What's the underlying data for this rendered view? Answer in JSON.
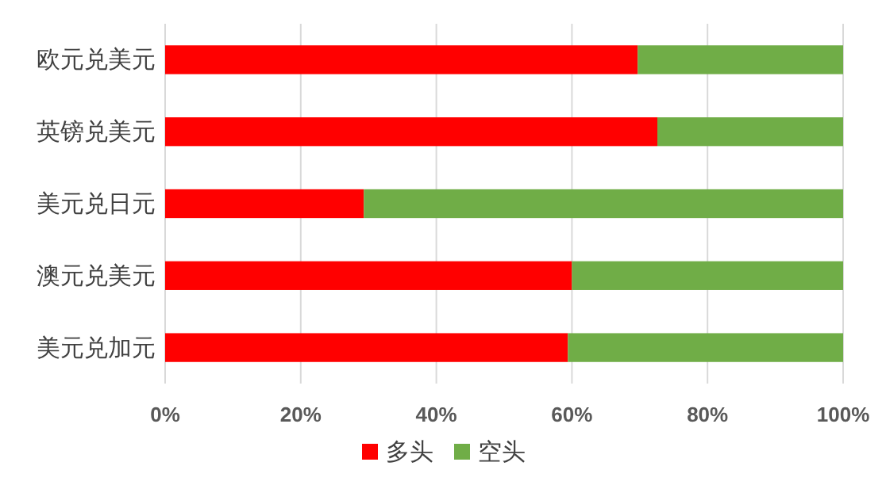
{
  "chart_data": {
    "type": "bar",
    "orientation": "horizontal",
    "stacked": true,
    "categories": [
      "欧元兑美元",
      "英镑兑美元",
      "美元兑日元",
      "澳元兑美元",
      "美元兑加元"
    ],
    "series": [
      {
        "name": "多头",
        "color": "#ff0000",
        "values": [
          69.7,
          72.6,
          29.3,
          60,
          59.4
        ]
      },
      {
        "name": "空头",
        "color": "#70ad47",
        "values": [
          30.3,
          27.4,
          70.7,
          40,
          40.6
        ]
      }
    ],
    "xlim": [
      0,
      100
    ],
    "xticks": [
      {
        "value": 0,
        "label": "0%"
      },
      {
        "value": 20,
        "label": "20%"
      },
      {
        "value": 40,
        "label": "40%"
      },
      {
        "value": 60,
        "label": "60%"
      },
      {
        "value": 80,
        "label": "80%"
      },
      {
        "value": 100,
        "label": "100%"
      }
    ],
    "grid": "x",
    "legend": "bottom"
  }
}
